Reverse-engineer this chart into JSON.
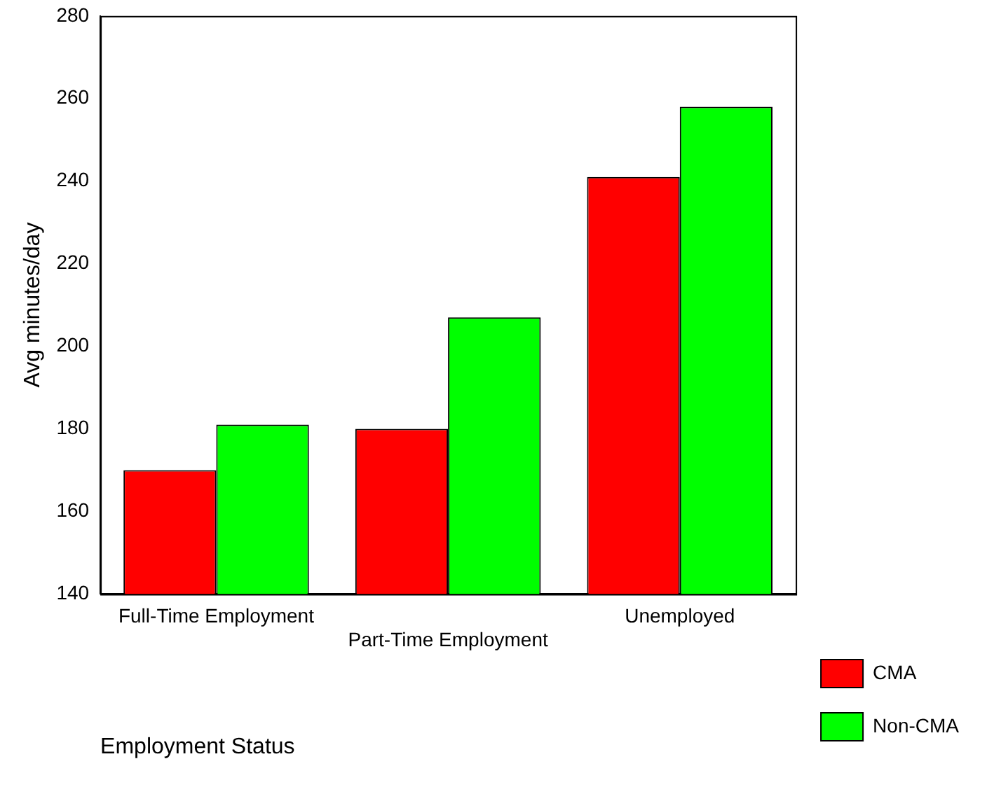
{
  "chart_data": {
    "type": "bar",
    "xlabel": "Employment Status",
    "ylabel": "Avg minutes/day",
    "categories": [
      "Full-Time Employment",
      "Part-Time Employment",
      "Unemployed"
    ],
    "series": [
      {
        "name": "CMA",
        "color": "#ff0000",
        "values": [
          170,
          180,
          241
        ]
      },
      {
        "name": "Non-CMA",
        "color": "#00ff00",
        "values": [
          181,
          207,
          258
        ]
      }
    ],
    "ylim": [
      140,
      280
    ],
    "yticks": [
      140,
      160,
      180,
      200,
      220,
      240,
      260,
      280
    ],
    "grid": false,
    "legend": "bottom right"
  }
}
